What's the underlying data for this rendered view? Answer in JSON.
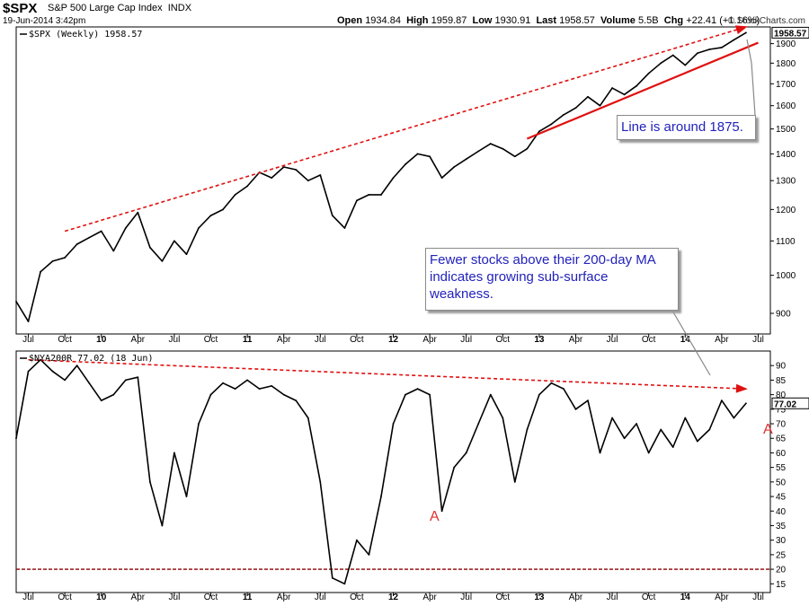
{
  "header": {
    "symbol": "$SPX",
    "name": "S&P 500 Large Cap Index",
    "exchange": "INDX",
    "date": "19-Jun-2014 3:42pm",
    "brand": "© StockCharts.com",
    "open_label": "Open",
    "open": "1934.84",
    "high_label": "High",
    "high": "1959.87",
    "low_label": "Low",
    "low": "1930.91",
    "last_label": "Last",
    "last": "1958.57",
    "volume_label": "Volume",
    "volume": "5.5B",
    "chg_label": "Chg",
    "chg": "+22.41 (+1.16%)"
  },
  "annotations": {
    "note1": "Line is around 1875.",
    "note2": "Fewer stocks above their 200-day MA indicates growing sub-surface weakness.",
    "marker_a": "A"
  },
  "colors": {
    "trend": "#e01010",
    "line": "#000000",
    "threshold": "#8b0000",
    "note_text": "#2222bb"
  },
  "chart_data": [
    {
      "type": "line",
      "legend": "$SPX (Weekly) 1958.57",
      "last_value_label": "1958.57",
      "yscale": "log",
      "ylim": [
        850,
        1990
      ],
      "yticks": [
        900,
        1000,
        1100,
        1200,
        1300,
        1400,
        1500,
        1600,
        1700,
        1800,
        1900
      ],
      "x_tick_labels": [
        "Jul",
        "Oct",
        "10",
        "Apr",
        "Jul",
        "Oct",
        "11",
        "Apr",
        "Jul",
        "Oct",
        "12",
        "Apr",
        "Jul",
        "Oct",
        "13",
        "Apr",
        "Jul",
        "Oct",
        "14",
        "Apr",
        "Jul"
      ],
      "x": [
        "2009-06",
        "2009-07",
        "2009-08",
        "2009-09",
        "2009-10",
        "2009-11",
        "2009-12",
        "2010-01",
        "2010-02",
        "2010-03",
        "2010-04",
        "2010-05",
        "2010-06",
        "2010-07",
        "2010-08",
        "2010-09",
        "2010-10",
        "2010-11",
        "2010-12",
        "2011-01",
        "2011-02",
        "2011-03",
        "2011-04",
        "2011-05",
        "2011-06",
        "2011-07",
        "2011-08",
        "2011-09",
        "2011-10",
        "2011-11",
        "2011-12",
        "2012-01",
        "2012-02",
        "2012-03",
        "2012-04",
        "2012-05",
        "2012-06",
        "2012-07",
        "2012-08",
        "2012-09",
        "2012-10",
        "2012-11",
        "2012-12",
        "2013-01",
        "2013-02",
        "2013-03",
        "2013-04",
        "2013-05",
        "2013-06",
        "2013-07",
        "2013-08",
        "2013-09",
        "2013-10",
        "2013-11",
        "2013-12",
        "2014-01",
        "2014-02",
        "2014-03",
        "2014-04",
        "2014-05",
        "2014-06"
      ],
      "values": [
        930,
        880,
        1010,
        1040,
        1050,
        1090,
        1110,
        1130,
        1070,
        1140,
        1190,
        1080,
        1040,
        1100,
        1060,
        1140,
        1180,
        1200,
        1250,
        1280,
        1330,
        1310,
        1350,
        1340,
        1300,
        1320,
        1180,
        1140,
        1230,
        1250,
        1250,
        1310,
        1360,
        1400,
        1390,
        1310,
        1350,
        1380,
        1410,
        1440,
        1420,
        1390,
        1420,
        1490,
        1520,
        1560,
        1590,
        1640,
        1600,
        1680,
        1650,
        1690,
        1750,
        1800,
        1840,
        1790,
        1850,
        1870,
        1880,
        1920,
        1958.57
      ],
      "trendlines": [
        {
          "style": "dashed",
          "from": [
            "2009-10",
            1130
          ],
          "to": [
            "2014-06",
            1990
          ]
        },
        {
          "style": "solid",
          "from": [
            "2012-12",
            1460
          ],
          "to": [
            "2014-07",
            1905
          ]
        }
      ]
    },
    {
      "type": "line",
      "legend": "$NYA200R 77.02 (18 Jun)",
      "last_value_label": "77.02",
      "ylim": [
        12,
        95
      ],
      "yticks": [
        15,
        20,
        25,
        30,
        35,
        40,
        45,
        50,
        55,
        60,
        65,
        70,
        75,
        80,
        85,
        90
      ],
      "x_tick_labels": [
        "Jul",
        "Oct",
        "10",
        "Apr",
        "Jul",
        "Oct",
        "11",
        "Apr",
        "Jul",
        "Oct",
        "12",
        "Apr",
        "Jul",
        "Oct",
        "13",
        "Apr",
        "Jul",
        "Oct",
        "14",
        "Apr",
        "Jul"
      ],
      "x": [
        "2009-06",
        "2009-07",
        "2009-08",
        "2009-09",
        "2009-10",
        "2009-11",
        "2009-12",
        "2010-01",
        "2010-02",
        "2010-03",
        "2010-04",
        "2010-05",
        "2010-06",
        "2010-07",
        "2010-08",
        "2010-09",
        "2010-10",
        "2010-11",
        "2010-12",
        "2011-01",
        "2011-02",
        "2011-03",
        "2011-04",
        "2011-05",
        "2011-06",
        "2011-07",
        "2011-08",
        "2011-09",
        "2011-10",
        "2011-11",
        "2011-12",
        "2012-01",
        "2012-02",
        "2012-03",
        "2012-04",
        "2012-05",
        "2012-06",
        "2012-07",
        "2012-08",
        "2012-09",
        "2012-10",
        "2012-11",
        "2012-12",
        "2013-01",
        "2013-02",
        "2013-03",
        "2013-04",
        "2013-05",
        "2013-06",
        "2013-07",
        "2013-08",
        "2013-09",
        "2013-10",
        "2013-11",
        "2013-12",
        "2014-01",
        "2014-02",
        "2014-03",
        "2014-04",
        "2014-05",
        "2014-06"
      ],
      "values": [
        65,
        88,
        92,
        88,
        85,
        90,
        84,
        78,
        80,
        85,
        86,
        50,
        35,
        60,
        45,
        70,
        80,
        84,
        82,
        85,
        82,
        83,
        80,
        78,
        72,
        50,
        17,
        15,
        30,
        25,
        45,
        70,
        80,
        82,
        80,
        40,
        55,
        60,
        70,
        80,
        72,
        50,
        68,
        80,
        84,
        82,
        75,
        78,
        60,
        72,
        65,
        70,
        60,
        68,
        62,
        72,
        64,
        68,
        78,
        72,
        77.02
      ],
      "threshold": 20,
      "trendlines": [
        {
          "style": "dashed",
          "from": [
            "2009-07",
            92
          ],
          "to": [
            "2014-06",
            82
          ]
        }
      ]
    }
  ]
}
